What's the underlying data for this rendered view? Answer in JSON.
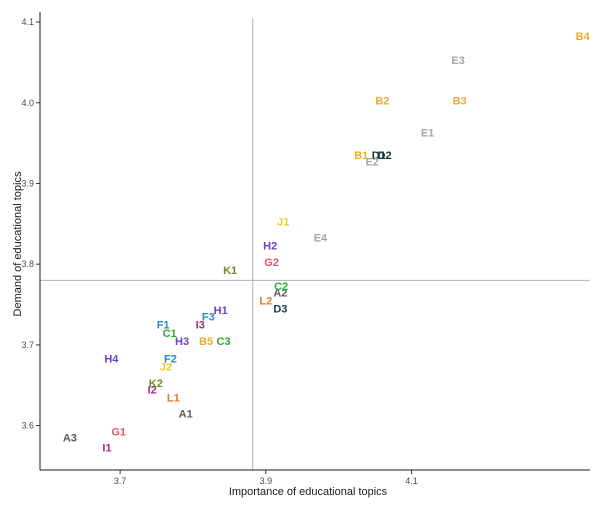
{
  "chart_data": {
    "type": "scatter",
    "title": "",
    "xlabel": "Importance of educational topics",
    "ylabel": "Demand of educational topics",
    "xlim": [
      3.59,
      4.345
    ],
    "ylim": [
      3.545,
      4.105
    ],
    "x_ticks": [
      3.7,
      3.9,
      4.1
    ],
    "y_ticks": [
      3.6,
      3.7,
      3.8,
      3.9,
      4.0,
      4.1
    ],
    "x_tick_labels": [
      "3.7",
      "3.9",
      "4.1"
    ],
    "y_tick_labels": [
      "3.6",
      "3.7",
      "3.8",
      "3.9",
      "4.0",
      "4.1"
    ],
    "ref_lines": {
      "x": 3.882,
      "y": 3.78
    },
    "grid": false,
    "legend": "none",
    "points": [
      {
        "label": "A1",
        "x": 3.79,
        "y": 3.615,
        "color": "#5a5a5a"
      },
      {
        "label": "A2",
        "x": 3.92,
        "y": 3.765,
        "color": "#5a5a5a"
      },
      {
        "label": "A3",
        "x": 3.631,
        "y": 3.585,
        "color": "#5a5a5a"
      },
      {
        "label": "B1",
        "x": 4.031,
        "y": 3.935,
        "color": "#f0a830"
      },
      {
        "label": "B2",
        "x": 4.06,
        "y": 4.003,
        "color": "#f0a830"
      },
      {
        "label": "B3",
        "x": 4.166,
        "y": 4.003,
        "color": "#f0a830"
      },
      {
        "label": "B4",
        "x": 4.335,
        "y": 4.083,
        "color": "#f0a830"
      },
      {
        "label": "B5",
        "x": 3.818,
        "y": 3.705,
        "color": "#f0a830"
      },
      {
        "label": "C1",
        "x": 3.768,
        "y": 3.715,
        "color": "#2ea82e"
      },
      {
        "label": "C2",
        "x": 3.921,
        "y": 3.773,
        "color": "#2ea82e"
      },
      {
        "label": "C3",
        "x": 3.842,
        "y": 3.705,
        "color": "#2ea82e"
      },
      {
        "label": "D1",
        "x": 4.055,
        "y": 3.935,
        "color": "#173a3a"
      },
      {
        "label": "D2",
        "x": 4.063,
        "y": 3.935,
        "color": "#173a3a"
      },
      {
        "label": "D3",
        "x": 3.92,
        "y": 3.745,
        "color": "#173a3a"
      },
      {
        "label": "E1",
        "x": 4.122,
        "y": 3.963,
        "color": "#a6a6a6"
      },
      {
        "label": "E2",
        "x": 4.046,
        "y": 3.927,
        "color": "#a6a6a6"
      },
      {
        "label": "E3",
        "x": 4.164,
        "y": 4.053,
        "color": "#a6a6a6"
      },
      {
        "label": "E4",
        "x": 3.975,
        "y": 3.833,
        "color": "#a6a6a6"
      },
      {
        "label": "F1",
        "x": 3.759,
        "y": 3.725,
        "color": "#2589c7"
      },
      {
        "label": "F2",
        "x": 3.769,
        "y": 3.683,
        "color": "#2589c7"
      },
      {
        "label": "F3",
        "x": 3.821,
        "y": 3.735,
        "color": "#2589c7"
      },
      {
        "label": "G1",
        "x": 3.698,
        "y": 3.593,
        "color": "#e0566a"
      },
      {
        "label": "G2",
        "x": 3.908,
        "y": 3.803,
        "color": "#e0566a"
      },
      {
        "label": "H1",
        "x": 3.838,
        "y": 3.743,
        "color": "#6b3fcc"
      },
      {
        "label": "H2",
        "x": 3.906,
        "y": 3.823,
        "color": "#6b3fcc"
      },
      {
        "label": "H3",
        "x": 3.785,
        "y": 3.705,
        "color": "#6b3fcc"
      },
      {
        "label": "H4",
        "x": 3.688,
        "y": 3.683,
        "color": "#6b3fcc"
      },
      {
        "label": "I1",
        "x": 3.682,
        "y": 3.573,
        "color": "#a62a7a"
      },
      {
        "label": "I2",
        "x": 3.744,
        "y": 3.645,
        "color": "#a62a7a"
      },
      {
        "label": "I3",
        "x": 3.81,
        "y": 3.725,
        "color": "#a62a7a"
      },
      {
        "label": "J1",
        "x": 3.924,
        "y": 3.853,
        "color": "#e6cf1f"
      },
      {
        "label": "J2",
        "x": 3.763,
        "y": 3.673,
        "color": "#e6cf1f"
      },
      {
        "label": "K1",
        "x": 3.851,
        "y": 3.793,
        "color": "#6b8a2e"
      },
      {
        "label": "K2",
        "x": 3.749,
        "y": 3.653,
        "color": "#6b8a2e"
      },
      {
        "label": "L1",
        "x": 3.773,
        "y": 3.635,
        "color": "#e07a1f"
      },
      {
        "label": "L2",
        "x": 3.9,
        "y": 3.755,
        "color": "#e07a1f"
      }
    ]
  }
}
